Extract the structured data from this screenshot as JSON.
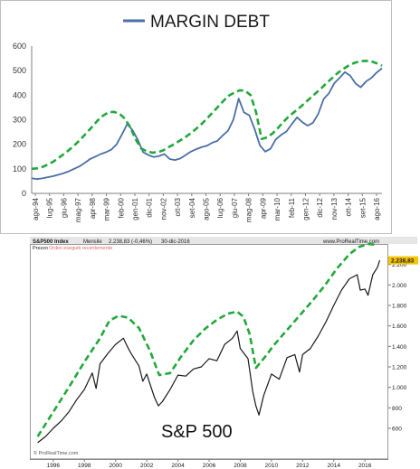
{
  "chart_data": [
    {
      "type": "line",
      "legend": "MARGIN DEBT",
      "legend_color": "#4a6fa5",
      "ylim": [
        0,
        600
      ],
      "y_ticks": [
        "0",
        "100",
        "200",
        "300",
        "400",
        "500",
        "600"
      ],
      "x_tick_labels": [
        "ago-94",
        "lug-95",
        "giu-96",
        "mag-97",
        "apr-98",
        "mar-99",
        "feb-00",
        "gen-01",
        "dic-01",
        "nov-02",
        "ott-03",
        "set-04",
        "ago-05",
        "lug-06",
        "giu-07",
        "mag-08",
        "apr-09",
        "mar-10",
        "feb-11",
        "gen-12",
        "dic-12",
        "nov-13",
        "ott-14",
        "set-15",
        "ago-16"
      ],
      "series_color": "#4a6fa5",
      "envelope_color": "#22a83a",
      "series": [
        {
          "values": [
            62,
            58,
            61,
            66,
            70,
            76,
            82,
            90,
            100,
            110,
            124,
            140,
            150,
            160,
            168,
            178,
            200,
            240,
            282,
            258,
            218,
            168,
            156,
            148,
            152,
            160,
            140,
            136,
            142,
            156,
            170,
            180,
            188,
            194,
            206,
            214,
            236,
            256,
            300,
            386,
            330,
            318,
            262,
            196,
            170,
            182,
            220,
            238,
            252,
            282,
            310,
            290,
            276,
            288,
            324,
            384,
            408,
            448,
            470,
            494,
            480,
            448,
            432,
            456,
            470,
            492,
            510
          ]
        },
        {
          "values": [
            100,
            102,
            108,
            118,
            130,
            146,
            162,
            180,
            200,
            222,
            246,
            270,
            296,
            316,
            330,
            332,
            325,
            305,
            270,
            220,
            183,
            172,
            166,
            168,
            175,
            188,
            200,
            214,
            228,
            244,
            262,
            282,
            304,
            328,
            352,
            376,
            398,
            410,
            420,
            418,
            400,
            330,
            222,
            228,
            244,
            266,
            292,
            314,
            332,
            350,
            370,
            390,
            410,
            430,
            452,
            472,
            492,
            508,
            522,
            532,
            538,
            540,
            538,
            530,
            520
          ]
        }
      ]
    },
    {
      "type": "line",
      "header_title": "S&P500 Index",
      "header_freq": "Mensile",
      "header_last": "2.238,83 (-0,46%)",
      "header_date": "30-dic-2016",
      "header_brand": "www.ProRealTime.com",
      "subheader_label": "Prezzo",
      "subheader_note": "Ordini eseguiti recentemente",
      "watermark": "© ProRealTime.com",
      "annotation": "S&P 500",
      "price_label": "2.238,83",
      "price_label_color": "#f5c400",
      "ylim": [
        300,
        2400
      ],
      "y_ticks": [
        {
          "value": 600,
          "label": "600"
        },
        {
          "value": 800,
          "label": "800"
        },
        {
          "value": 1000,
          "label": "1.000"
        },
        {
          "value": 1200,
          "label": "1.200"
        },
        {
          "value": 1400,
          "label": "1.400"
        },
        {
          "value": 1600,
          "label": "1.600"
        },
        {
          "value": 1800,
          "label": "1.800"
        },
        {
          "value": 2000,
          "label": "2.000"
        },
        {
          "value": 2200,
          "label": "2.200"
        }
      ],
      "x_ticks": [
        "1996",
        "1998",
        "2000",
        "2002",
        "2004",
        "2006",
        "2008",
        "2010",
        "2012",
        "2014",
        "2016"
      ],
      "series_color": "#1a1a1a",
      "envelope_color": "#22a83a",
      "series": [
        {
          "x": [
            1995.0,
            1995.5,
            1996.0,
            1996.5,
            1997.0,
            1997.5,
            1998.0,
            1998.5,
            1998.75,
            1999.0,
            1999.5,
            2000.0,
            2000.5,
            2000.75,
            2001.0,
            2001.5,
            2001.75,
            2002.0,
            2002.5,
            2002.75,
            2003.0,
            2003.5,
            2004.0,
            2004.5,
            2005.0,
            2005.5,
            2006.0,
            2006.5,
            2007.0,
            2007.5,
            2007.8,
            2008.0,
            2008.5,
            2008.8,
            2009.0,
            2009.2,
            2009.5,
            2010.0,
            2010.5,
            2011.0,
            2011.5,
            2011.8,
            2012.0,
            2012.5,
            2013.0,
            2013.5,
            2014.0,
            2014.5,
            2015.0,
            2015.5,
            2015.7,
            2016.0,
            2016.2,
            2016.5,
            2016.8,
            2016.95
          ],
          "values": [
            460,
            520,
            600,
            670,
            760,
            880,
            980,
            1140,
            990,
            1230,
            1330,
            1420,
            1480,
            1400,
            1330,
            1210,
            1060,
            1130,
            900,
            820,
            860,
            980,
            1120,
            1110,
            1180,
            1200,
            1280,
            1260,
            1420,
            1480,
            1550,
            1380,
            1280,
            960,
            820,
            730,
            920,
            1130,
            1080,
            1290,
            1320,
            1150,
            1320,
            1380,
            1500,
            1640,
            1800,
            1950,
            2060,
            2100,
            1950,
            1960,
            1900,
            2100,
            2170,
            2240
          ]
        },
        {
          "x": [
            1995.0,
            1996.0,
            1997.0,
            1998.0,
            1999.0,
            1999.6,
            2000.2,
            2000.8,
            2001.5,
            2002.2,
            2002.8,
            2003.5,
            2004.2,
            2005.0,
            2005.8,
            2006.5,
            2007.2,
            2007.8,
            2008.2,
            2008.6,
            2009.0,
            2009.5,
            2010.2,
            2011.0,
            2011.8,
            2012.6,
            2013.4,
            2014.2,
            2015.0,
            2015.6,
            2016.2,
            2016.8
          ],
          "values": [
            520,
            760,
            1000,
            1250,
            1480,
            1650,
            1700,
            1680,
            1580,
            1360,
            1120,
            1140,
            1300,
            1460,
            1580,
            1660,
            1720,
            1740,
            1690,
            1520,
            1190,
            1280,
            1420,
            1560,
            1700,
            1840,
            1990,
            2160,
            2300,
            2370,
            2400,
            2390
          ]
        }
      ]
    }
  ]
}
